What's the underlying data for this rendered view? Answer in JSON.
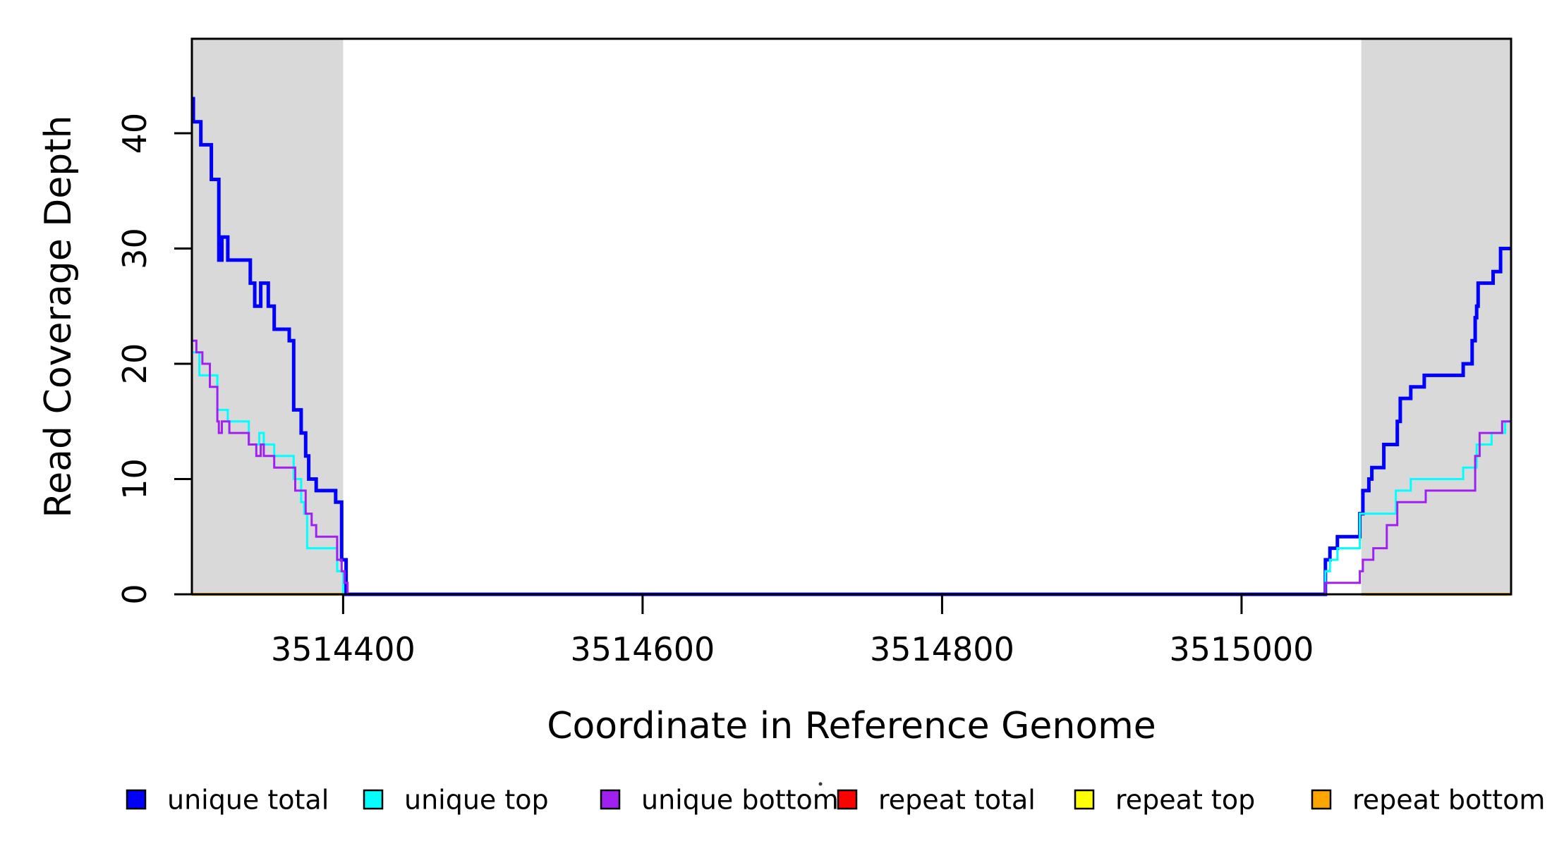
{
  "figure": {
    "background": "#ffffff",
    "border_color": "#000000"
  },
  "chart_data": {
    "type": "line",
    "subtype": "step",
    "title": "",
    "xlabel": "Coordinate in Reference Genome",
    "ylabel": "Read Coverage Depth",
    "xlim": [
      3514299,
      3515180
    ],
    "ylim": [
      0,
      48.2
    ],
    "grid": "off",
    "legend_position": "bottom",
    "band_color": "#d9d9d9",
    "shaded_regions": [
      {
        "name": "left-repeat-region",
        "from": 3514299,
        "to": 3514400
      },
      {
        "name": "right-repeat-region",
        "from": 3515080,
        "to": 3515180
      }
    ],
    "x_ticks": [
      {
        "value": 3514400,
        "label": "3514400"
      },
      {
        "value": 3514600,
        "label": "3514600"
      },
      {
        "value": 3514800,
        "label": "3514800"
      },
      {
        "value": 3515000,
        "label": "3515000"
      }
    ],
    "y_ticks": [
      {
        "value": 0,
        "label": "0"
      },
      {
        "value": 10,
        "label": "10"
      },
      {
        "value": 20,
        "label": "20"
      },
      {
        "value": 30,
        "label": "30"
      },
      {
        "value": 40,
        "label": "40"
      }
    ],
    "series": [
      {
        "name": "unique total",
        "color": "#0000ff",
        "width": 5,
        "segments": [
          [
            [
              3514299,
              43
            ],
            [
              3514300,
              41
            ],
            [
              3514305,
              39
            ],
            [
              3514312,
              36
            ],
            [
              3514317,
              29
            ],
            [
              3514319,
              31
            ],
            [
              3514323,
              29
            ],
            [
              3514338,
              27
            ],
            [
              3514341,
              25
            ],
            [
              3514345,
              27
            ],
            [
              3514350,
              25
            ],
            [
              3514354,
              23
            ],
            [
              3514364,
              22
            ],
            [
              3514367,
              16
            ],
            [
              3514372,
              14
            ],
            [
              3514375,
              12
            ],
            [
              3514377,
              10
            ],
            [
              3514382,
              9
            ],
            [
              3514395,
              8
            ],
            [
              3514399,
              3
            ],
            [
              3514402,
              0
            ],
            [
              3515056,
              3
            ],
            [
              3515059,
              4
            ],
            [
              3515064,
              5
            ],
            [
              3515079,
              7
            ],
            [
              3515081,
              9
            ],
            [
              3515085,
              10
            ],
            [
              3515087,
              11
            ],
            [
              3515095,
              13
            ],
            [
              3515104,
              15
            ],
            [
              3515106,
              17
            ],
            [
              3515113,
              18
            ],
            [
              3515122,
              19
            ],
            [
              3515148,
              20
            ],
            [
              3515154,
              22
            ],
            [
              3515156,
              24
            ],
            [
              3515157,
              25
            ],
            [
              3515158,
              27
            ],
            [
              3515168,
              28
            ],
            [
              3515173,
              30
            ],
            [
              3515180,
              30
            ]
          ]
        ]
      },
      {
        "name": "unique top",
        "color": "#00ffff",
        "width": 3,
        "segments": [
          [
            [
              3514299,
              21
            ],
            [
              3514304,
              19
            ],
            [
              3514316,
              16
            ],
            [
              3514323,
              15
            ],
            [
              3514337,
              13
            ],
            [
              3514344,
              14
            ],
            [
              3514347,
              13
            ],
            [
              3514354,
              12
            ],
            [
              3514367,
              10
            ],
            [
              3514372,
              8
            ],
            [
              3514374,
              7
            ],
            [
              3514376,
              4
            ],
            [
              3514396,
              2
            ],
            [
              3514400,
              0
            ],
            [
              3515056,
              2
            ],
            [
              3515059,
              3
            ],
            [
              3515064,
              4
            ],
            [
              3515079,
              7
            ],
            [
              3515103,
              9
            ],
            [
              3515113,
              10
            ],
            [
              3515148,
              11
            ],
            [
              3515157,
              13
            ],
            [
              3515167,
              14
            ],
            [
              3515176,
              15
            ],
            [
              3515180,
              15
            ]
          ]
        ]
      },
      {
        "name": "unique bottom",
        "color": "#a020f0",
        "width": 3,
        "segments": [
          [
            [
              3514299,
              22
            ],
            [
              3514302,
              21
            ],
            [
              3514306,
              20
            ],
            [
              3514311,
              18
            ],
            [
              3514316,
              15
            ],
            [
              3514317,
              14
            ],
            [
              3514319,
              15
            ],
            [
              3514324,
              14
            ],
            [
              3514337,
              13
            ],
            [
              3514342,
              12
            ],
            [
              3514345,
              13
            ],
            [
              3514347,
              12
            ],
            [
              3514354,
              11
            ],
            [
              3514368,
              9
            ],
            [
              3514375,
              7
            ],
            [
              3514379,
              6
            ],
            [
              3514382,
              5
            ],
            [
              3514396,
              3
            ],
            [
              3514399,
              2
            ],
            [
              3514401,
              1
            ],
            [
              3514403,
              0
            ],
            [
              3515056,
              1
            ],
            [
              3515079,
              2
            ],
            [
              3515081,
              3
            ],
            [
              3515088,
              4
            ],
            [
              3515097,
              6
            ],
            [
              3515104,
              8
            ],
            [
              3515123,
              9
            ],
            [
              3515156,
              12
            ],
            [
              3515159,
              14
            ],
            [
              3515174,
              15
            ],
            [
              3515180,
              15
            ]
          ]
        ]
      },
      {
        "name": "repeat total",
        "color": "#ff0000",
        "width": 3,
        "segments": [
          [
            [
              3514299,
              0
            ],
            [
              3514400,
              0
            ]
          ],
          [
            [
              3515080,
              0
            ],
            [
              3515180,
              0
            ]
          ]
        ]
      },
      {
        "name": "repeat top",
        "color": "#ffff00",
        "width": 3,
        "segments": [
          [
            [
              3514299,
              0
            ],
            [
              3514400,
              0
            ]
          ],
          [
            [
              3515080,
              0
            ],
            [
              3515180,
              0
            ]
          ]
        ]
      },
      {
        "name": "repeat bottom",
        "color": "#ffa500",
        "width": 4,
        "segments": [
          [
            [
              3514299,
              0
            ],
            [
              3514400,
              0
            ]
          ],
          [
            [
              3515080,
              0
            ],
            [
              3515180,
              0
            ]
          ]
        ]
      }
    ],
    "legend": {
      "items": [
        {
          "label": "unique total",
          "color": "#0000ff"
        },
        {
          "label": "unique top",
          "color": "#00ffff"
        },
        {
          "label": "unique bottom",
          "color": "#a020f0"
        },
        {
          "label": "repeat total",
          "color": "#ff0000"
        },
        {
          "label": "repeat top",
          "color": "#ffff00"
        },
        {
          "label": "repeat bottom",
          "color": "#ffa500"
        }
      ]
    }
  }
}
